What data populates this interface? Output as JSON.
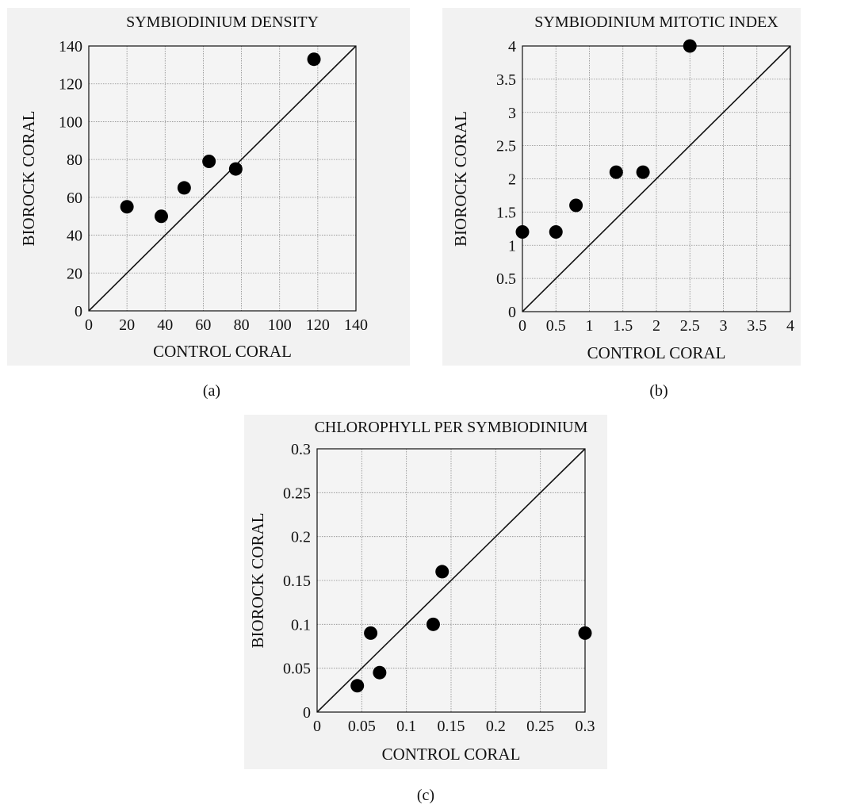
{
  "chart_data": [
    {
      "type": "scatter",
      "title": "SYMBIODINIUM DENSITY",
      "xlabel": "CONTROL CORAL",
      "ylabel": "BIOROCK CORAL",
      "xlim": [
        0,
        140
      ],
      "ylim": [
        0,
        140
      ],
      "xticks": [
        "0",
        "20",
        "40",
        "60",
        "80",
        "100",
        "120",
        "140"
      ],
      "yticks": [
        "0",
        "20",
        "40",
        "60",
        "80",
        "100",
        "120",
        "140"
      ],
      "xtick_values": [
        0,
        20,
        40,
        60,
        80,
        100,
        120,
        140
      ],
      "ytick_values": [
        0,
        20,
        40,
        60,
        80,
        100,
        120,
        140
      ],
      "grid": true,
      "reference_line": "y = x",
      "points": [
        {
          "x": 20,
          "y": 55
        },
        {
          "x": 38,
          "y": 50
        },
        {
          "x": 50,
          "y": 65
        },
        {
          "x": 63,
          "y": 79
        },
        {
          "x": 77,
          "y": 75
        },
        {
          "x": 118,
          "y": 133
        }
      ],
      "caption": "(a)"
    },
    {
      "type": "scatter",
      "title": "SYMBIODINIUM MITOTIC INDEX",
      "xlabel": "CONTROL CORAL",
      "ylabel": "BIOROCK CORAL",
      "xlim": [
        0,
        4
      ],
      "ylim": [
        0,
        4
      ],
      "xticks": [
        "0",
        "0.5",
        "1",
        "1.5",
        "2",
        "2.5",
        "3",
        "3.5",
        "4"
      ],
      "yticks": [
        "0",
        "0.5",
        "1",
        "1.5",
        "2",
        "2.5",
        "3",
        "3.5",
        "4"
      ],
      "xtick_values": [
        0,
        0.5,
        1,
        1.5,
        2,
        2.5,
        3,
        3.5,
        4
      ],
      "ytick_values": [
        0,
        0.5,
        1,
        1.5,
        2,
        2.5,
        3,
        3.5,
        4
      ],
      "grid": true,
      "reference_line": "y = x",
      "points": [
        {
          "x": 0,
          "y": 1.2
        },
        {
          "x": 0.5,
          "y": 1.2
        },
        {
          "x": 0.8,
          "y": 1.6
        },
        {
          "x": 1.4,
          "y": 2.1
        },
        {
          "x": 1.8,
          "y": 2.1
        },
        {
          "x": 2.5,
          "y": 4.0
        }
      ],
      "caption": "(b)"
    },
    {
      "type": "scatter",
      "title": "CHLOROPHYLL PER SYMBIODINIUM",
      "xlabel": "CONTROL CORAL",
      "ylabel": "BIOROCK CORAL",
      "xlim": [
        0,
        0.3
      ],
      "ylim": [
        0,
        0.3
      ],
      "xticks": [
        "0",
        "0.05",
        "0.1",
        "0.15",
        "0.2",
        "0.25",
        "0.3"
      ],
      "yticks": [
        "0",
        "0.05",
        "0.1",
        "0.15",
        "0.2",
        "0.25",
        "0.3"
      ],
      "xtick_values": [
        0,
        0.05,
        0.1,
        0.15,
        0.2,
        0.25,
        0.3
      ],
      "ytick_values": [
        0,
        0.05,
        0.1,
        0.15,
        0.2,
        0.25,
        0.3
      ],
      "grid": true,
      "reference_line": "y = x",
      "points": [
        {
          "x": 0.045,
          "y": 0.03
        },
        {
          "x": 0.06,
          "y": 0.09
        },
        {
          "x": 0.07,
          "y": 0.045
        },
        {
          "x": 0.13,
          "y": 0.1
        },
        {
          "x": 0.14,
          "y": 0.16
        },
        {
          "x": 0.3,
          "y": 0.09
        }
      ],
      "caption": "(c)"
    }
  ]
}
